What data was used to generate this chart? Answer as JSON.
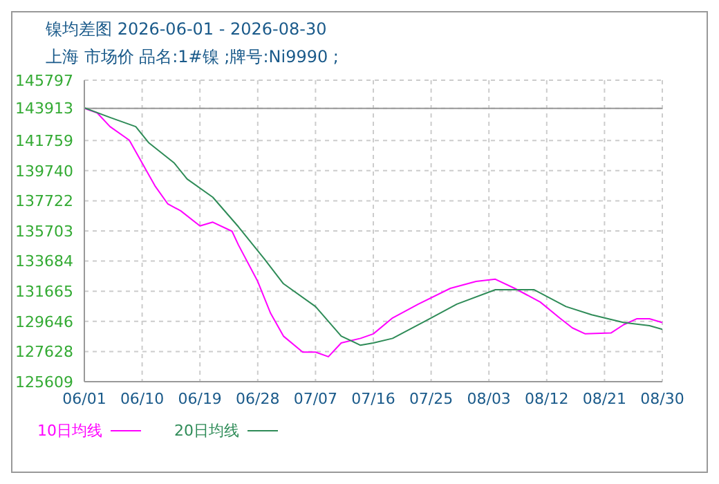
{
  "chart_data": {
    "type": "line",
    "title": "镍均差图 2026-06-01 - 2026-08-30",
    "subtitle": "上海 市场价 品名:1#镍 ;牌号:Ni9990 ;",
    "ylim": [
      125609,
      145797
    ],
    "yticks": [
      125609,
      127628,
      129646,
      131665,
      133684,
      135703,
      137722,
      139740,
      141759,
      143913,
      145797
    ],
    "xlim": [
      "2026-06-01",
      "2026-08-30"
    ],
    "xticks": [
      {
        "value": "2026-06-01",
        "label": "06/01"
      },
      {
        "value": "2026-06-10",
        "label": "06/10"
      },
      {
        "value": "2026-06-19",
        "label": "06/19"
      },
      {
        "value": "2026-06-28",
        "label": "06/28"
      },
      {
        "value": "2026-07-07",
        "label": "07/07"
      },
      {
        "value": "2026-07-16",
        "label": "07/16"
      },
      {
        "value": "2026-07-25",
        "label": "07/25"
      },
      {
        "value": "2026-08-03",
        "label": "08/03"
      },
      {
        "value": "2026-08-12",
        "label": "08/12"
      },
      {
        "value": "2026-08-21",
        "label": "08/21"
      },
      {
        "value": "2026-08-30",
        "label": "08/30"
      }
    ],
    "grid": true,
    "legend": "bottom left",
    "marker": "none",
    "line_style": "solid",
    "ref_lines": [
      {
        "axis": "y",
        "value": 143913,
        "color": "#999999",
        "line_style": "solid"
      }
    ],
    "series": [
      {
        "name": "10日均线",
        "color": "#ff00ff",
        "x": [
          "2026-06-01",
          "2026-06-03",
          "2026-06-05",
          "2026-06-08",
          "2026-06-10",
          "2026-06-12",
          "2026-06-14",
          "2026-06-16",
          "2026-06-19",
          "2026-06-21",
          "2026-06-24",
          "2026-06-25",
          "2026-06-28",
          "2026-06-30",
          "2026-07-02",
          "2026-07-05",
          "2026-07-07",
          "2026-07-09",
          "2026-07-11",
          "2026-07-14",
          "2026-07-16",
          "2026-07-19",
          "2026-07-23",
          "2026-07-28",
          "2026-08-01",
          "2026-08-04",
          "2026-08-07",
          "2026-08-11",
          "2026-08-14",
          "2026-08-16",
          "2026-08-18",
          "2026-08-22",
          "2026-08-24",
          "2026-08-26",
          "2026-08-28",
          "2026-08-30"
        ],
        "values": [
          143913,
          143610,
          142690,
          141780,
          140250,
          138720,
          137510,
          137050,
          136040,
          136290,
          135680,
          134760,
          132320,
          130190,
          128660,
          127590,
          127590,
          127280,
          128200,
          128510,
          128810,
          129880,
          130800,
          131860,
          132320,
          132470,
          131860,
          130940,
          129880,
          129210,
          128810,
          128870,
          129430,
          129820,
          129820,
          129570
        ]
      },
      {
        "name": "20日均线",
        "color": "#2e8b57",
        "x": [
          "2026-06-01",
          "2026-06-05",
          "2026-06-09",
          "2026-06-11",
          "2026-06-15",
          "2026-06-17",
          "2026-06-21",
          "2026-06-25",
          "2026-06-29",
          "2026-07-02",
          "2026-07-07",
          "2026-07-11",
          "2026-07-14",
          "2026-07-16",
          "2026-07-19",
          "2026-07-25",
          "2026-07-29",
          "2026-08-04",
          "2026-08-10",
          "2026-08-15",
          "2026-08-19",
          "2026-08-24",
          "2026-08-28",
          "2026-08-30"
        ],
        "values": [
          143950,
          143300,
          142690,
          141620,
          140250,
          139180,
          137960,
          135980,
          133850,
          132170,
          130640,
          128660,
          128050,
          128200,
          128510,
          129880,
          130800,
          131770,
          131770,
          130640,
          130090,
          129570,
          129360,
          129110
        ]
      }
    ]
  }
}
